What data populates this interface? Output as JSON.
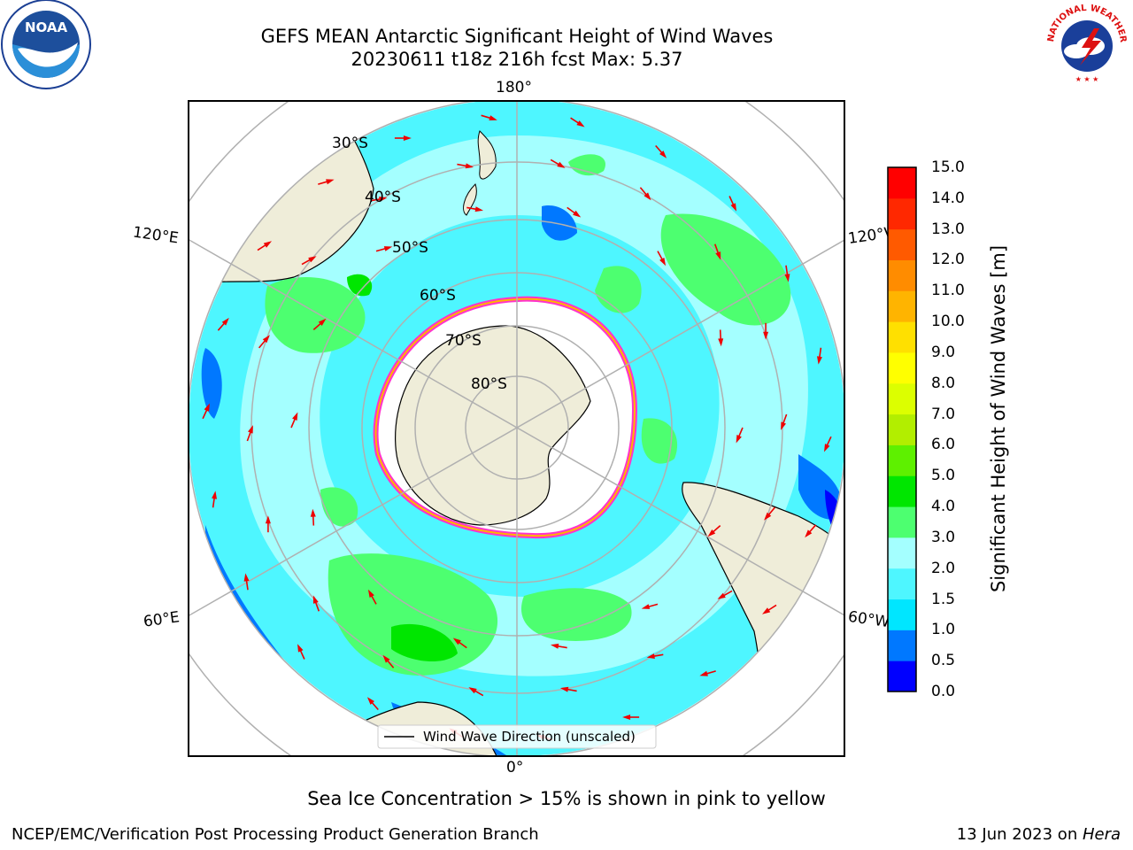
{
  "title": {
    "line1": "GEFS MEAN Antarctic Significant Height of Wind Waves",
    "line2": "20230611 t18z 216h fcst   Max: 5.37"
  },
  "logos": {
    "left_icon": "noaa-logo-icon",
    "left_text": "NOAA",
    "right_icon": "national-weather-service-logo-icon",
    "right_text": "NATIONAL WEATHER SERVICE"
  },
  "map": {
    "longitude_labels": {
      "top": "180°",
      "bottom": "0°",
      "upper_left": "120°E",
      "upper_right": "120°W",
      "lower_left": "60°E",
      "lower_right": "60°W"
    },
    "latitude_labels": [
      "30°S",
      "40°S",
      "50°S",
      "60°S",
      "70°S",
      "80°S"
    ],
    "legend_label": "Wind Wave Direction (unscaled)",
    "colors": {
      "land": "#efedd9",
      "ice": "#ffffff",
      "arrow": "#ee0000",
      "ice_edge": "#ff33cc"
    }
  },
  "colorbar": {
    "label": "Significant Height of Wind Waves [m]",
    "ticks": [
      "0.0",
      "0.5",
      "1.0",
      "1.5",
      "2.0",
      "3.0",
      "4.0",
      "5.0",
      "6.0",
      "7.0",
      "8.0",
      "9.0",
      "10.0",
      "11.0",
      "12.0",
      "13.0",
      "14.0",
      "15.0"
    ],
    "colors": [
      "#0000ff",
      "#0078ff",
      "#00e6ff",
      "#4ef6ff",
      "#a4ffff",
      "#4dff70",
      "#00e600",
      "#5ef000",
      "#b2ee00",
      "#dcff00",
      "#ffff00",
      "#ffe000",
      "#ffb400",
      "#ff8c00",
      "#ff5a00",
      "#ff2800",
      "#ff0000"
    ]
  },
  "note": "Sea Ice Concentration > 15% is shown in pink to yellow",
  "footer": {
    "left": "NCEP/EMC/Verification Post Processing Product Generation Branch",
    "date": "13 Jun 2023 on ",
    "machine": "Hera"
  }
}
